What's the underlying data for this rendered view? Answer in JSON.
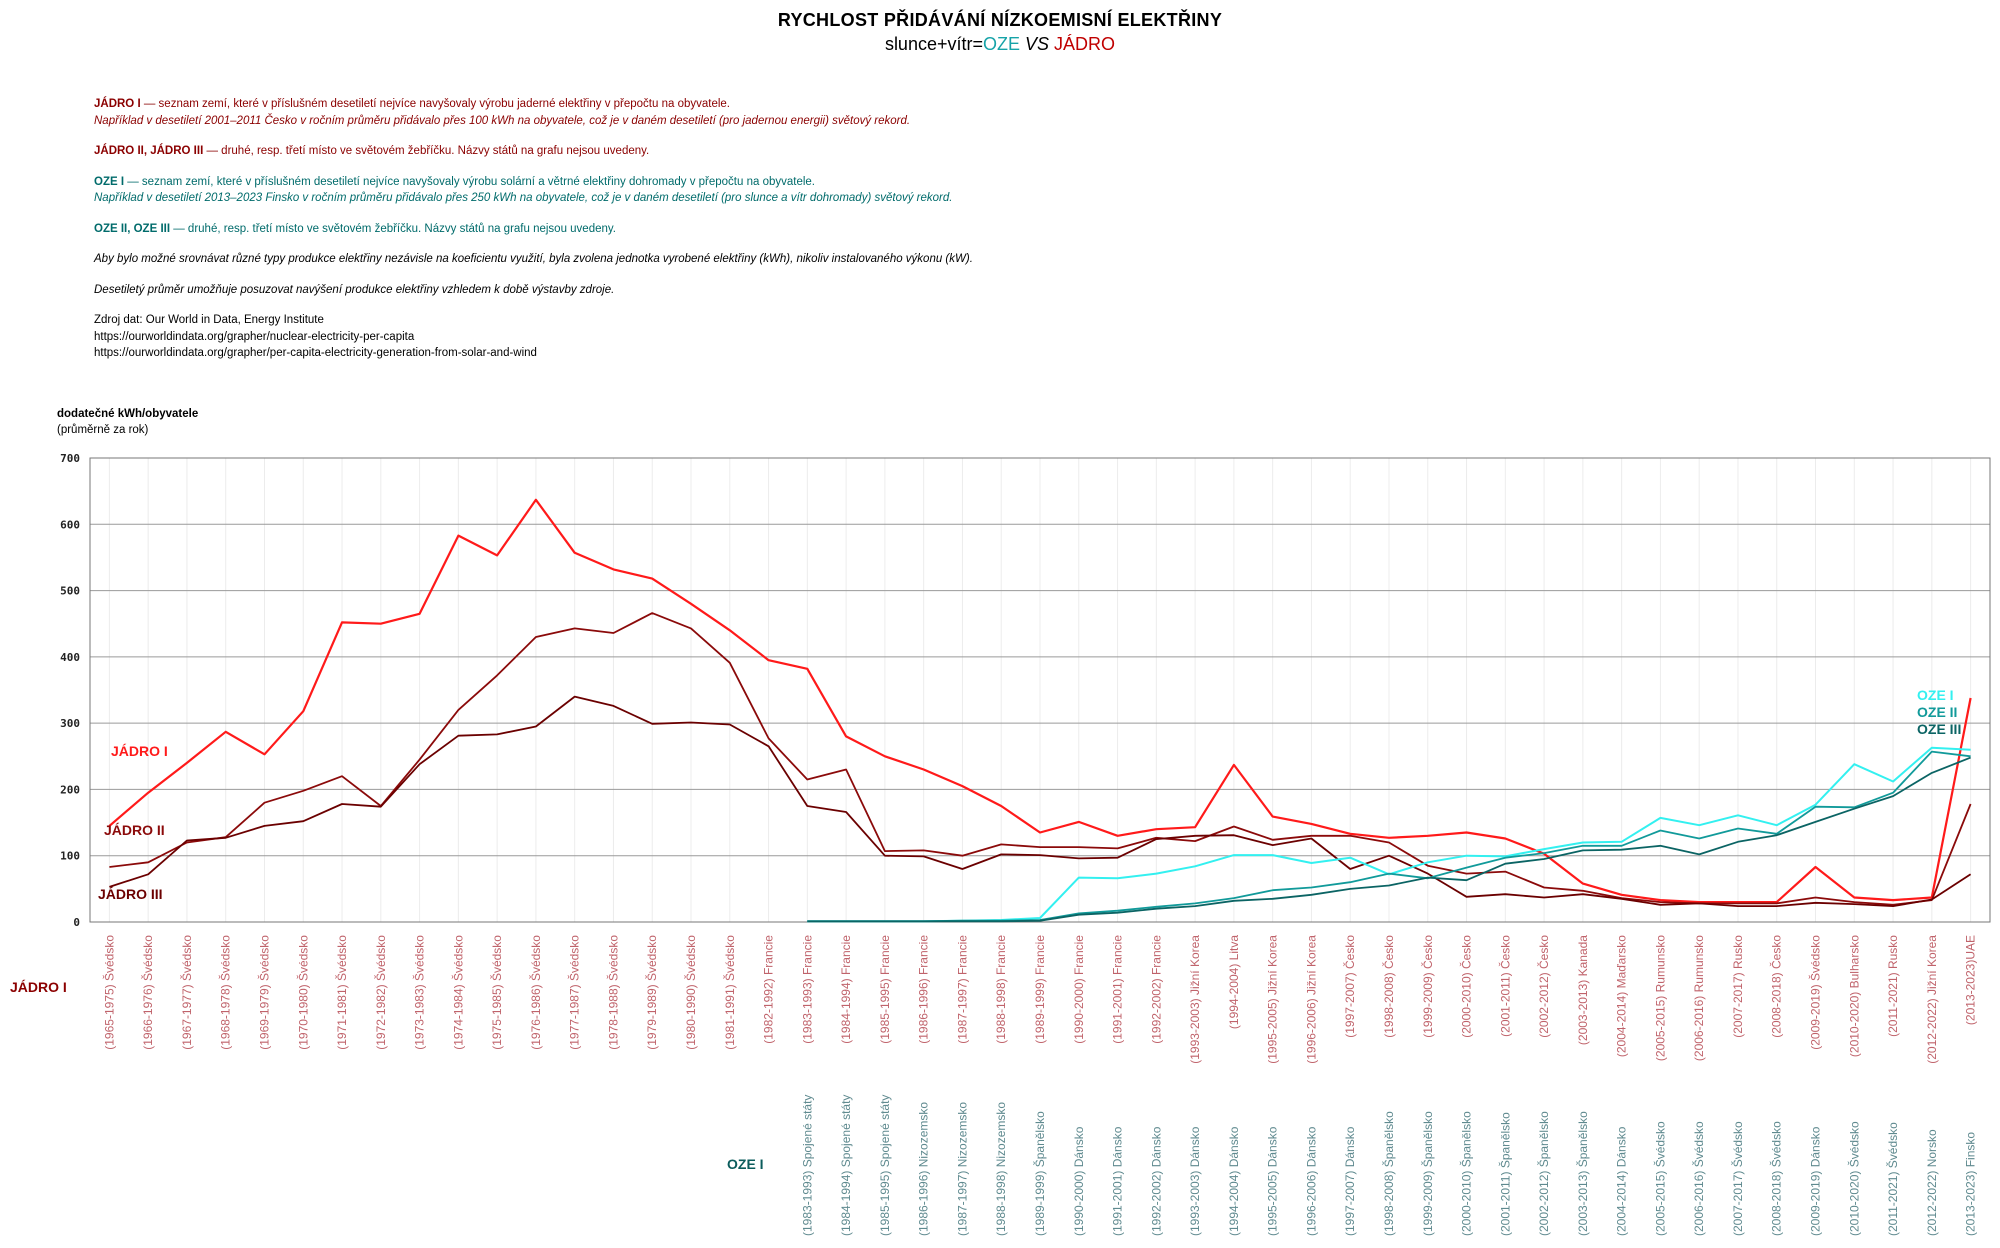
{
  "header": {
    "title": "RYCHLOST PŘIDÁVÁNÍ NÍZKOEMISNÍ ELEKTŘINY",
    "subtitle_prefix": "slunce+vítr=",
    "subtitle_oze": "OZE",
    "subtitle_vs": " VS ",
    "subtitle_jadro": "JÁDRO"
  },
  "notes": {
    "jadro1_label": "JÁDRO I",
    "jadro1_text": " — seznam zemí, které v příslušném desetiletí nejvíce navyšovaly výrobu jaderné elektřiny v přepočtu na obyvatele.",
    "jadro1_example": "Například v desetiletí 2001–2011 Česko v ročním průměru přidávalo přes 100 kWh na obyvatele, což je v daném desetiletí (pro jadernou energii) světový rekord.",
    "jadro23_label": "JÁDRO II, JÁDRO III",
    "jadro23_text": " — druhé, resp. třetí místo ve světovém žebříčku. Názvy států na grafu nejsou uvedeny.",
    "oze1_label": "OZE I",
    "oze1_text": " — seznam zemí, které v příslušném desetiletí nejvíce navyšovaly výrobu solární a větrné elektřiny dohromady v přepočtu na obyvatele.",
    "oze1_example": "Například v desetiletí 2013–2023 Finsko v ročním průměru přidávalo přes 250 kWh na obyvatele, což je v daném desetiletí (pro slunce a vítr dohromady) světový rekord.",
    "oze23_label": "OZE II, OZE III",
    "oze23_text": " — druhé, resp. třetí místo ve světovém žebříčku. Názvy států na grafu nejsou uvedeny.",
    "note1": "Aby bylo možné srovnávat různé typy produkce elektřiny nezávisle na koeficientu využití, byla zvolena jednotka vyrobené elektřiny (kWh), nikoliv instalovaného výkonu (kW).",
    "note2": "Desetiletý průměr umožňuje posuzovat navýšení produkce elektřiny vzhledem k době výstavby zdroje.",
    "source_label": "Zdroj dat: Our World in Data, Energy Institute",
    "source_url1": "https://ourworldindata.org/grapher/nuclear-electricity-per-capita",
    "source_url2": "https://ourworldindata.org/grapher/per-capita-electricity-generation-from-solar-and-wind"
  },
  "colors": {
    "jadro1": "#ff1a1a",
    "jadro2": "#8b0a0a",
    "jadro3": "#6b0000",
    "oze1": "#33f0f0",
    "oze2": "#119a9a",
    "oze3": "#0b6464",
    "grid": "#9a9a9a"
  },
  "chart_data": {
    "type": "line",
    "title": "RYCHLOST PŘIDÁVÁNÍ NÍZKOEMISNÍ ELEKTŘINY",
    "ylabel": "dodatečné kWh/obyvatele",
    "ylabel_sub": "(průměrně za rok)",
    "ylim": [
      0,
      700
    ],
    "yticks": [
      "0",
      "100",
      "200",
      "300",
      "400",
      "500",
      "600",
      "700"
    ],
    "jadro_axis_label": "JÁDRO I",
    "oze_axis_label": "OZE I",
    "jadro_categories": [
      "(1965-1975) Švédsko",
      "(1966-1976) Švédsko",
      "(1967-1977) Švédsko",
      "(1968-1978) Švédsko",
      "(1969-1979) Švédsko",
      "(1970-1980) Švédsko",
      "(1971-1981) Švédsko",
      "(1972-1982) Švédsko",
      "(1973-1983) Švédsko",
      "(1974-1984) Švédsko",
      "(1975-1985) Švédsko",
      "(1976-1986) Švédsko",
      "(1977-1987) Švédsko",
      "(1978-1988) Švédsko",
      "(1979-1989) Švédsko",
      "(1980-1990) Švédsko",
      "(1981-1991) Švédsko",
      "(1982-1992) Francie",
      "(1983-1993) Francie",
      "(1984-1994) Francie",
      "(1985-1995) Francie",
      "(1986-1996) Francie",
      "(1987-1997) Francie",
      "(1988-1998) Francie",
      "(1989-1999) Francie",
      "(1990-2000) Francie",
      "(1991-2001) Francie",
      "(1992-2002) Francie",
      "(1993-2003) Jižní Korea",
      "(1994-2004) Litva",
      "(1995-2005) Jižní Korea",
      "(1996-2006) Jižní Korea",
      "(1997-2007) Česko",
      "(1998-2008) Česko",
      "(1999-2009) Česko",
      "(2000-2010) Česko",
      "(2001-2011) Česko",
      "(2002-2012) Česko",
      "(2003-2013) Kanada",
      "(2004-2014) Maďarsko",
      "(2005-2015) Rumunsko",
      "(2006-2016) Rumunsko",
      "(2007-2017) Rusko",
      "(2008-2018) Česko",
      "(2009-2019) Švédsko",
      "(2010-2020) Bulharsko",
      "(2011-2021) Rusko",
      "(2012-2022) Jižní Korea",
      "(2013-2023)UAE"
    ],
    "oze_categories": [
      "(1983-1993) Spojené státy",
      "(1984-1994) Spojené státy",
      "(1985-1995) Spojené státy",
      "(1986-1996) Nizozemsko",
      "(1987-1997) Nizozemsko",
      "(1988-1998) Nizozemsko",
      "(1989-1999) Španělsko",
      "(1990-2000) Dánsko",
      "(1991-2001) Dánsko",
      "(1992-2002) Dánsko",
      "(1993-2003) Dánsko",
      "(1994-2004) Dánsko",
      "(1995-2005) Dánsko",
      "(1996-2006) Dánsko",
      "(1997-2007) Dánsko",
      "(1998-2008) Španělsko",
      "(1999-2009) Španělsko",
      "(2000-2010) Španělsko",
      "(2001-2011) Španělsko",
      "(2002-2012) Španělsko",
      "(2003-2013) Španělsko",
      "(2004-2014) Dánsko",
      "(2005-2015) Švédsko",
      "(2006-2016) Švédsko",
      "(2007-2017) Švédsko",
      "(2008-2018) Švédsko",
      "(2009-2019) Dánsko",
      "(2010-2020) Švédsko",
      "(2011-2021) Švédsko",
      "(2012-2022) Norsko",
      "(2013-2023) Finsko"
    ],
    "oze_start_index": 18,
    "series": [
      {
        "name": "JÁDRO I",
        "group": "jadro",
        "color_key": "jadro1",
        "width": 2.2,
        "values": [
          145,
          195,
          240,
          287,
          253,
          318,
          452,
          450,
          465,
          583,
          553,
          637,
          557,
          532,
          518,
          480,
          440,
          395,
          382,
          280,
          250,
          230,
          205,
          175,
          135,
          151,
          130,
          140,
          143,
          237,
          159,
          148,
          133,
          127,
          130,
          135,
          126,
          103,
          58,
          41,
          33,
          30,
          30,
          30,
          83,
          37,
          33,
          37,
          338
        ]
      },
      {
        "name": "JÁDRO II",
        "group": "jadro",
        "color_key": "jadro2",
        "width": 1.8,
        "values": [
          83,
          90,
          120,
          128,
          180,
          198,
          220,
          175,
          245,
          320,
          372,
          430,
          443,
          436,
          466,
          443,
          391,
          277,
          215,
          230,
          107,
          108,
          100,
          117,
          113,
          113,
          111,
          127,
          122,
          144,
          124,
          130,
          130,
          120,
          85,
          73,
          76,
          52,
          47,
          36,
          30,
          28,
          28,
          28,
          37,
          30,
          26,
          33,
          178
        ]
      },
      {
        "name": "JÁDRO III",
        "group": "jadro",
        "color_key": "jadro3",
        "width": 1.8,
        "values": [
          53,
          72,
          123,
          127,
          145,
          152,
          178,
          174,
          238,
          281,
          283,
          295,
          340,
          326,
          299,
          301,
          298,
          265,
          175,
          166,
          100,
          99,
          80,
          102,
          101,
          96,
          97,
          125,
          130,
          131,
          116,
          126,
          80,
          100,
          73,
          38,
          42,
          37,
          42,
          35,
          26,
          28,
          24,
          24,
          29,
          27,
          24,
          34,
          72
        ]
      },
      {
        "name": "OZE I",
        "group": "oze",
        "color_key": "oze1",
        "width": 2.0,
        "values": [
          1,
          1,
          1,
          1,
          2,
          3,
          6,
          67,
          66,
          73,
          84,
          101,
          101,
          89,
          97,
          72,
          90,
          100,
          99,
          110,
          120,
          121,
          157,
          146,
          161,
          146,
          177,
          238,
          212,
          263,
          260
        ]
      },
      {
        "name": "OZE II",
        "group": "oze",
        "color_key": "oze2",
        "width": 1.8,
        "values": [
          1,
          1,
          1,
          1,
          2,
          2,
          3,
          13,
          17,
          23,
          28,
          36,
          48,
          52,
          60,
          73,
          66,
          82,
          97,
          104,
          115,
          115,
          138,
          126,
          141,
          133,
          174,
          173,
          195,
          257,
          250
        ]
      },
      {
        "name": "OZE III",
        "group": "oze",
        "color_key": "oze3",
        "width": 1.8,
        "values": [
          1,
          1,
          1,
          1,
          1,
          1,
          2,
          11,
          14,
          20,
          24,
          32,
          35,
          41,
          50,
          55,
          67,
          63,
          88,
          95,
          108,
          109,
          115,
          102,
          121,
          131,
          151,
          171,
          190,
          225,
          248
        ]
      }
    ],
    "series_labels": {
      "jadro1": "JÁDRO I",
      "jadro2": "JÁDRO II",
      "jadro3": "JÁDRO III",
      "oze1": "OZE I",
      "oze2": "OZE II",
      "oze3": "OZE III"
    }
  }
}
